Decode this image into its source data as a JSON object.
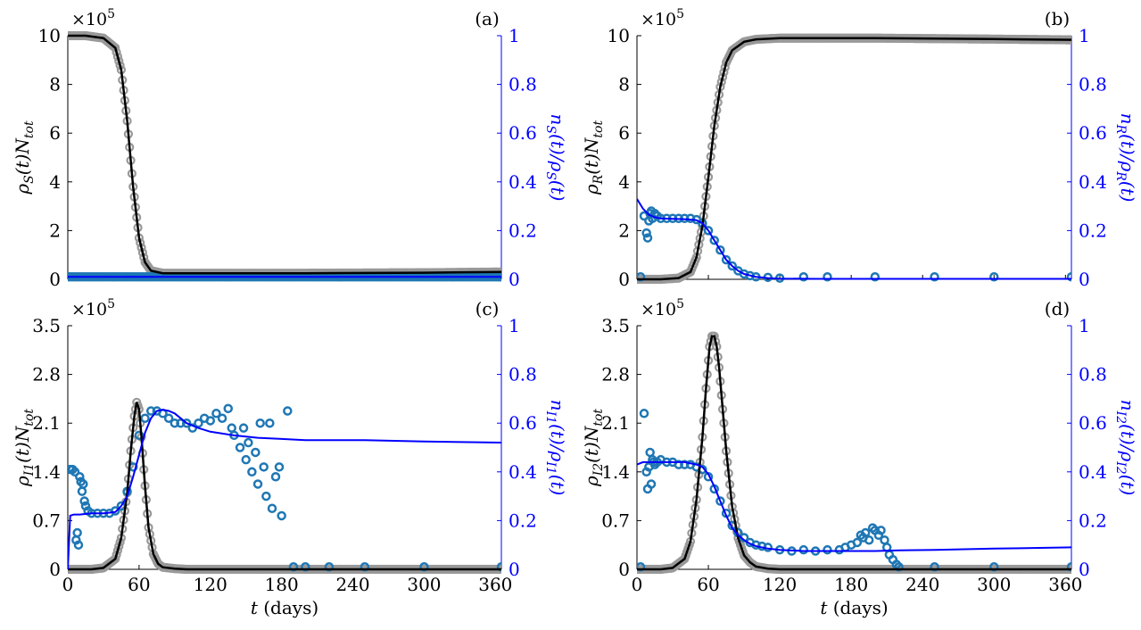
{
  "colors": {
    "axis_left": "#000000",
    "axis_right": "#0000ff",
    "gray_markers": "#999999",
    "black_line": "#000000",
    "blue_markers": "#1f77b4",
    "blue_line": "#0000ff"
  },
  "chart_data": [
    {
      "type": "line",
      "panel_label": "(a)",
      "exponent_label": "×10",
      "exponent_power": "5",
      "ylabel_left": "ρS(t)Ntot",
      "ylabel_right": "nS(t)/ρS(t)",
      "xlabel": "",
      "xlim": [
        0,
        365
      ],
      "ylim_left": [
        0,
        10
      ],
      "ylim_right": [
        0,
        1
      ],
      "x_ticks": [],
      "yticks_left": [
        "0",
        "2",
        "4",
        "6",
        "8",
        "10"
      ],
      "yticks_right": [
        "0",
        "0.2",
        "0.4",
        "0.6",
        "0.8",
        "1"
      ],
      "series": [
        {
          "style": "gray-markers",
          "axis": "left",
          "x": [
            0,
            15,
            30,
            40,
            45,
            50,
            55,
            60,
            65,
            70,
            80,
            100,
            150,
            200,
            250,
            300,
            365
          ],
          "y": [
            10,
            10,
            9.9,
            9.5,
            8.6,
            6.5,
            3.8,
            1.7,
            0.7,
            0.35,
            0.25,
            0.25,
            0.25,
            0.25,
            0.26,
            0.27,
            0.3
          ]
        },
        {
          "style": "black-line",
          "axis": "left",
          "x": [
            0,
            15,
            30,
            40,
            45,
            50,
            55,
            60,
            65,
            70,
            80,
            100,
            150,
            200,
            250,
            300,
            365
          ],
          "y": [
            10,
            10,
            9.9,
            9.5,
            8.6,
            6.5,
            3.8,
            1.7,
            0.7,
            0.35,
            0.25,
            0.25,
            0.25,
            0.25,
            0.26,
            0.27,
            0.3
          ]
        },
        {
          "style": "blue-markers",
          "axis": "right",
          "x": [
            0,
            50,
            100,
            150,
            200,
            250,
            300,
            365
          ],
          "y": [
            0.01,
            0.01,
            0.01,
            0.01,
            0.01,
            0.01,
            0.01,
            0.01
          ]
        },
        {
          "style": "blue-line",
          "axis": "right",
          "x": [
            0,
            365
          ],
          "y": [
            0.01,
            0.01
          ]
        }
      ]
    },
    {
      "type": "line",
      "panel_label": "(b)",
      "exponent_label": "×10",
      "exponent_power": "5",
      "ylabel_left": "ρR(t)Ntot",
      "ylabel_right": "nR(t)/ρR(t)",
      "xlabel": "",
      "xlim": [
        0,
        365
      ],
      "ylim_left": [
        0,
        10
      ],
      "ylim_right": [
        0,
        1
      ],
      "x_ticks": [],
      "yticks_left": [
        "0",
        "2",
        "4",
        "6",
        "8",
        "10"
      ],
      "yticks_right": [
        "0",
        "0.2",
        "0.4",
        "0.6",
        "0.8",
        "1"
      ],
      "series": [
        {
          "style": "gray-markers",
          "axis": "left",
          "x": [
            0,
            20,
            35,
            45,
            50,
            55,
            60,
            65,
            70,
            75,
            80,
            90,
            100,
            120,
            150,
            200,
            250,
            300,
            365
          ],
          "y": [
            0,
            0,
            0.05,
            0.3,
            0.9,
            2.2,
            4.2,
            6.3,
            7.9,
            8.9,
            9.4,
            9.75,
            9.85,
            9.9,
            9.9,
            9.9,
            9.88,
            9.86,
            9.83
          ]
        },
        {
          "style": "black-line",
          "axis": "left",
          "x": [
            0,
            20,
            35,
            45,
            50,
            55,
            60,
            65,
            70,
            75,
            80,
            90,
            100,
            120,
            150,
            200,
            250,
            300,
            365
          ],
          "y": [
            0,
            0,
            0.05,
            0.3,
            0.9,
            2.2,
            4.2,
            6.3,
            7.9,
            8.9,
            9.4,
            9.75,
            9.85,
            9.9,
            9.9,
            9.9,
            9.88,
            9.86,
            9.83
          ]
        },
        {
          "style": "blue-markers",
          "axis": "right",
          "x": [
            3,
            6,
            8,
            9,
            10,
            11,
            12,
            13,
            15,
            17,
            20,
            25,
            30,
            35,
            40,
            45,
            50,
            55,
            60,
            65,
            70,
            75,
            80,
            85,
            90,
            95,
            100,
            110,
            120,
            140,
            160,
            200,
            250,
            300,
            365
          ],
          "y": [
            0.01,
            0.26,
            0.19,
            0.17,
            0.24,
            0.27,
            0.28,
            0.25,
            0.27,
            0.26,
            0.25,
            0.25,
            0.25,
            0.25,
            0.25,
            0.25,
            0.245,
            0.23,
            0.2,
            0.16,
            0.12,
            0.08,
            0.055,
            0.035,
            0.022,
            0.015,
            0.01,
            0.008,
            0.005,
            0.01,
            0.01,
            0.01,
            0.01,
            0.01,
            0.01
          ]
        },
        {
          "style": "blue-line",
          "axis": "right",
          "x": [
            0,
            5,
            10,
            15,
            20,
            30,
            40,
            50,
            55,
            60,
            65,
            70,
            75,
            80,
            85,
            90,
            100,
            110,
            120,
            150,
            200,
            250,
            300,
            365
          ],
          "y": [
            0.33,
            0.29,
            0.265,
            0.255,
            0.25,
            0.248,
            0.247,
            0.243,
            0.23,
            0.2,
            0.16,
            0.12,
            0.08,
            0.055,
            0.035,
            0.022,
            0.01,
            0.005,
            0.003,
            0.002,
            0.002,
            0.002,
            0.002,
            0.002
          ]
        }
      ]
    },
    {
      "type": "line",
      "panel_label": "(c)",
      "exponent_label": "×10",
      "exponent_power": "5",
      "ylabel_left": "ρI1(t)Ntot",
      "ylabel_right": "nI1(t)/ρI1(t)",
      "xlabel": "t (days)",
      "xlim": [
        0,
        365
      ],
      "ylim_left": [
        0,
        3.5
      ],
      "ylim_right": [
        0,
        1
      ],
      "x_ticks": [
        "0",
        "60",
        "120",
        "180",
        "240",
        "300",
        "360"
      ],
      "yticks_left": [
        "0",
        "0.7",
        "1.4",
        "2.1",
        "2.8",
        "3.5"
      ],
      "yticks_right": [
        "0",
        "0.2",
        "0.4",
        "0.6",
        "0.8",
        "1"
      ],
      "series": [
        {
          "style": "gray-markers",
          "axis": "left",
          "x": [
            0,
            20,
            30,
            40,
            45,
            50,
            53,
            56,
            58,
            60,
            62,
            65,
            68,
            72,
            76,
            80,
            90,
            100,
            150,
            200,
            250,
            300,
            365
          ],
          "y": [
            0,
            0,
            0.02,
            0.15,
            0.45,
            1.1,
            1.7,
            2.2,
            2.4,
            2.3,
            1.9,
            1.2,
            0.6,
            0.22,
            0.08,
            0.03,
            0.01,
            0,
            0,
            0,
            0,
            0,
            0
          ]
        },
        {
          "style": "black-line",
          "axis": "left",
          "x": [
            0,
            20,
            30,
            40,
            45,
            50,
            53,
            56,
            58,
            60,
            62,
            65,
            68,
            72,
            76,
            80,
            90,
            100,
            150,
            200,
            250,
            300,
            365
          ],
          "y": [
            0,
            0,
            0.02,
            0.15,
            0.45,
            1.1,
            1.7,
            2.2,
            2.4,
            2.3,
            1.9,
            1.2,
            0.6,
            0.22,
            0.08,
            0.03,
            0.01,
            0,
            0,
            0,
            0,
            0,
            0
          ]
        },
        {
          "style": "blue-markers",
          "axis": "right",
          "x": [
            2,
            4,
            6,
            7,
            8,
            9,
            10,
            11,
            12,
            13,
            14,
            15,
            17,
            20,
            25,
            30,
            35,
            40,
            45,
            50,
            55,
            60,
            65,
            70,
            75,
            80,
            85,
            90,
            95,
            100,
            105,
            110,
            115,
            120,
            125,
            130,
            135,
            138,
            140,
            145,
            148,
            150,
            152,
            155,
            158,
            160,
            162,
            165,
            167,
            170,
            172,
            175,
            178,
            180,
            185,
            190,
            200,
            220,
            250,
            300,
            365
          ],
          "y": [
            0.41,
            0.41,
            0.4,
            0.12,
            0.15,
            0.1,
            0.38,
            0.36,
            0.32,
            0.35,
            0.28,
            0.26,
            0.24,
            0.23,
            0.23,
            0.23,
            0.23,
            0.24,
            0.26,
            0.32,
            0.42,
            0.55,
            0.62,
            0.65,
            0.65,
            0.64,
            0.62,
            0.6,
            0.6,
            0.6,
            0.58,
            0.6,
            0.62,
            0.61,
            0.64,
            0.62,
            0.66,
            0.58,
            0.55,
            0.5,
            0.58,
            0.45,
            0.52,
            0.4,
            0.48,
            0.35,
            0.6,
            0.42,
            0.3,
            0.6,
            0.25,
            0.38,
            0.42,
            0.22,
            0.65,
            0.01,
            0.01,
            0.01,
            0.01,
            0.01,
            0.01
          ]
        },
        {
          "style": "blue-line",
          "axis": "right",
          "x": [
            0,
            2,
            5,
            10,
            20,
            30,
            40,
            45,
            50,
            55,
            60,
            65,
            70,
            75,
            80,
            85,
            90,
            95,
            100,
            110,
            120,
            140,
            160,
            180,
            200,
            250,
            300,
            365
          ],
          "y": [
            0,
            0.22,
            0.225,
            0.225,
            0.23,
            0.23,
            0.235,
            0.26,
            0.3,
            0.38,
            0.47,
            0.56,
            0.62,
            0.65,
            0.655,
            0.65,
            0.64,
            0.62,
            0.6,
            0.58,
            0.565,
            0.55,
            0.54,
            0.535,
            0.53,
            0.53,
            0.525,
            0.52
          ]
        }
      ]
    },
    {
      "type": "line",
      "panel_label": "(d)",
      "exponent_label": "×10",
      "exponent_power": "5",
      "ylabel_left": "ρI2(t)Ntot",
      "ylabel_right": "nI2(t)/ρI2(t)",
      "xlabel": "t (days)",
      "xlim": [
        0,
        365
      ],
      "ylim_left": [
        0,
        3.5
      ],
      "ylim_right": [
        0,
        1
      ],
      "x_ticks": [
        "0",
        "60",
        "120",
        "180",
        "240",
        "300",
        "360"
      ],
      "yticks_left": [
        "0",
        "0.7",
        "1.4",
        "2.1",
        "2.8",
        "3.5"
      ],
      "yticks_right": [
        "0",
        "0.2",
        "0.4",
        "0.6",
        "0.8",
        "1"
      ],
      "series": [
        {
          "style": "gray-markers",
          "axis": "left",
          "x": [
            0,
            20,
            30,
            40,
            45,
            50,
            55,
            58,
            61,
            63,
            65,
            67,
            69,
            72,
            75,
            80,
            85,
            90,
            95,
            100,
            110,
            120,
            150,
            200,
            250,
            300,
            365
          ],
          "y": [
            0,
            0,
            0.02,
            0.15,
            0.4,
            1.0,
            1.9,
            2.6,
            3.2,
            3.35,
            3.35,
            3.2,
            2.9,
            2.3,
            1.7,
            0.9,
            0.45,
            0.2,
            0.1,
            0.04,
            0.01,
            0,
            0,
            0,
            0,
            0,
            0
          ]
        },
        {
          "style": "black-line",
          "axis": "left",
          "x": [
            0,
            20,
            30,
            40,
            45,
            50,
            55,
            58,
            61,
            63,
            65,
            67,
            69,
            72,
            75,
            80,
            85,
            90,
            95,
            100,
            110,
            120,
            150,
            200,
            250,
            300,
            365
          ],
          "y": [
            0,
            0,
            0.02,
            0.15,
            0.4,
            1.0,
            1.9,
            2.6,
            3.2,
            3.35,
            3.35,
            3.2,
            2.9,
            2.3,
            1.7,
            0.9,
            0.45,
            0.2,
            0.1,
            0.04,
            0.01,
            0,
            0,
            0,
            0,
            0,
            0
          ]
        },
        {
          "style": "blue-markers",
          "axis": "right",
          "x": [
            3,
            6,
            8,
            9,
            10,
            11,
            12,
            13,
            14,
            15,
            17,
            20,
            25,
            30,
            35,
            40,
            45,
            50,
            55,
            60,
            65,
            70,
            75,
            80,
            85,
            90,
            95,
            100,
            105,
            110,
            120,
            130,
            140,
            150,
            160,
            170,
            175,
            180,
            185,
            188,
            190,
            192,
            195,
            198,
            200,
            203,
            205,
            208,
            210,
            212,
            215,
            218,
            220,
            250,
            300,
            365
          ],
          "y": [
            0.01,
            0.64,
            0.4,
            0.33,
            0.42,
            0.48,
            0.35,
            0.45,
            0.44,
            0.43,
            0.44,
            0.45,
            0.44,
            0.44,
            0.43,
            0.43,
            0.43,
            0.42,
            0.41,
            0.38,
            0.33,
            0.28,
            0.23,
            0.18,
            0.15,
            0.13,
            0.11,
            0.1,
            0.095,
            0.09,
            0.08,
            0.075,
            0.08,
            0.075,
            0.08,
            0.08,
            0.09,
            0.1,
            0.11,
            0.14,
            0.13,
            0.15,
            0.12,
            0.17,
            0.16,
            0.14,
            0.16,
            0.12,
            0.09,
            0.06,
            0.04,
            0.02,
            0.01,
            0.01,
            0.01,
            0.01
          ]
        },
        {
          "style": "blue-line",
          "axis": "right",
          "x": [
            0,
            5,
            10,
            20,
            30,
            40,
            50,
            55,
            60,
            65,
            70,
            75,
            80,
            85,
            90,
            95,
            100,
            110,
            120,
            140,
            160,
            180,
            200,
            220,
            250,
            300,
            365
          ],
          "y": [
            0.43,
            0.44,
            0.44,
            0.44,
            0.44,
            0.44,
            0.43,
            0.42,
            0.39,
            0.34,
            0.28,
            0.22,
            0.17,
            0.14,
            0.12,
            0.105,
            0.095,
            0.085,
            0.08,
            0.075,
            0.075,
            0.075,
            0.075,
            0.078,
            0.08,
            0.085,
            0.09
          ]
        }
      ]
    }
  ]
}
